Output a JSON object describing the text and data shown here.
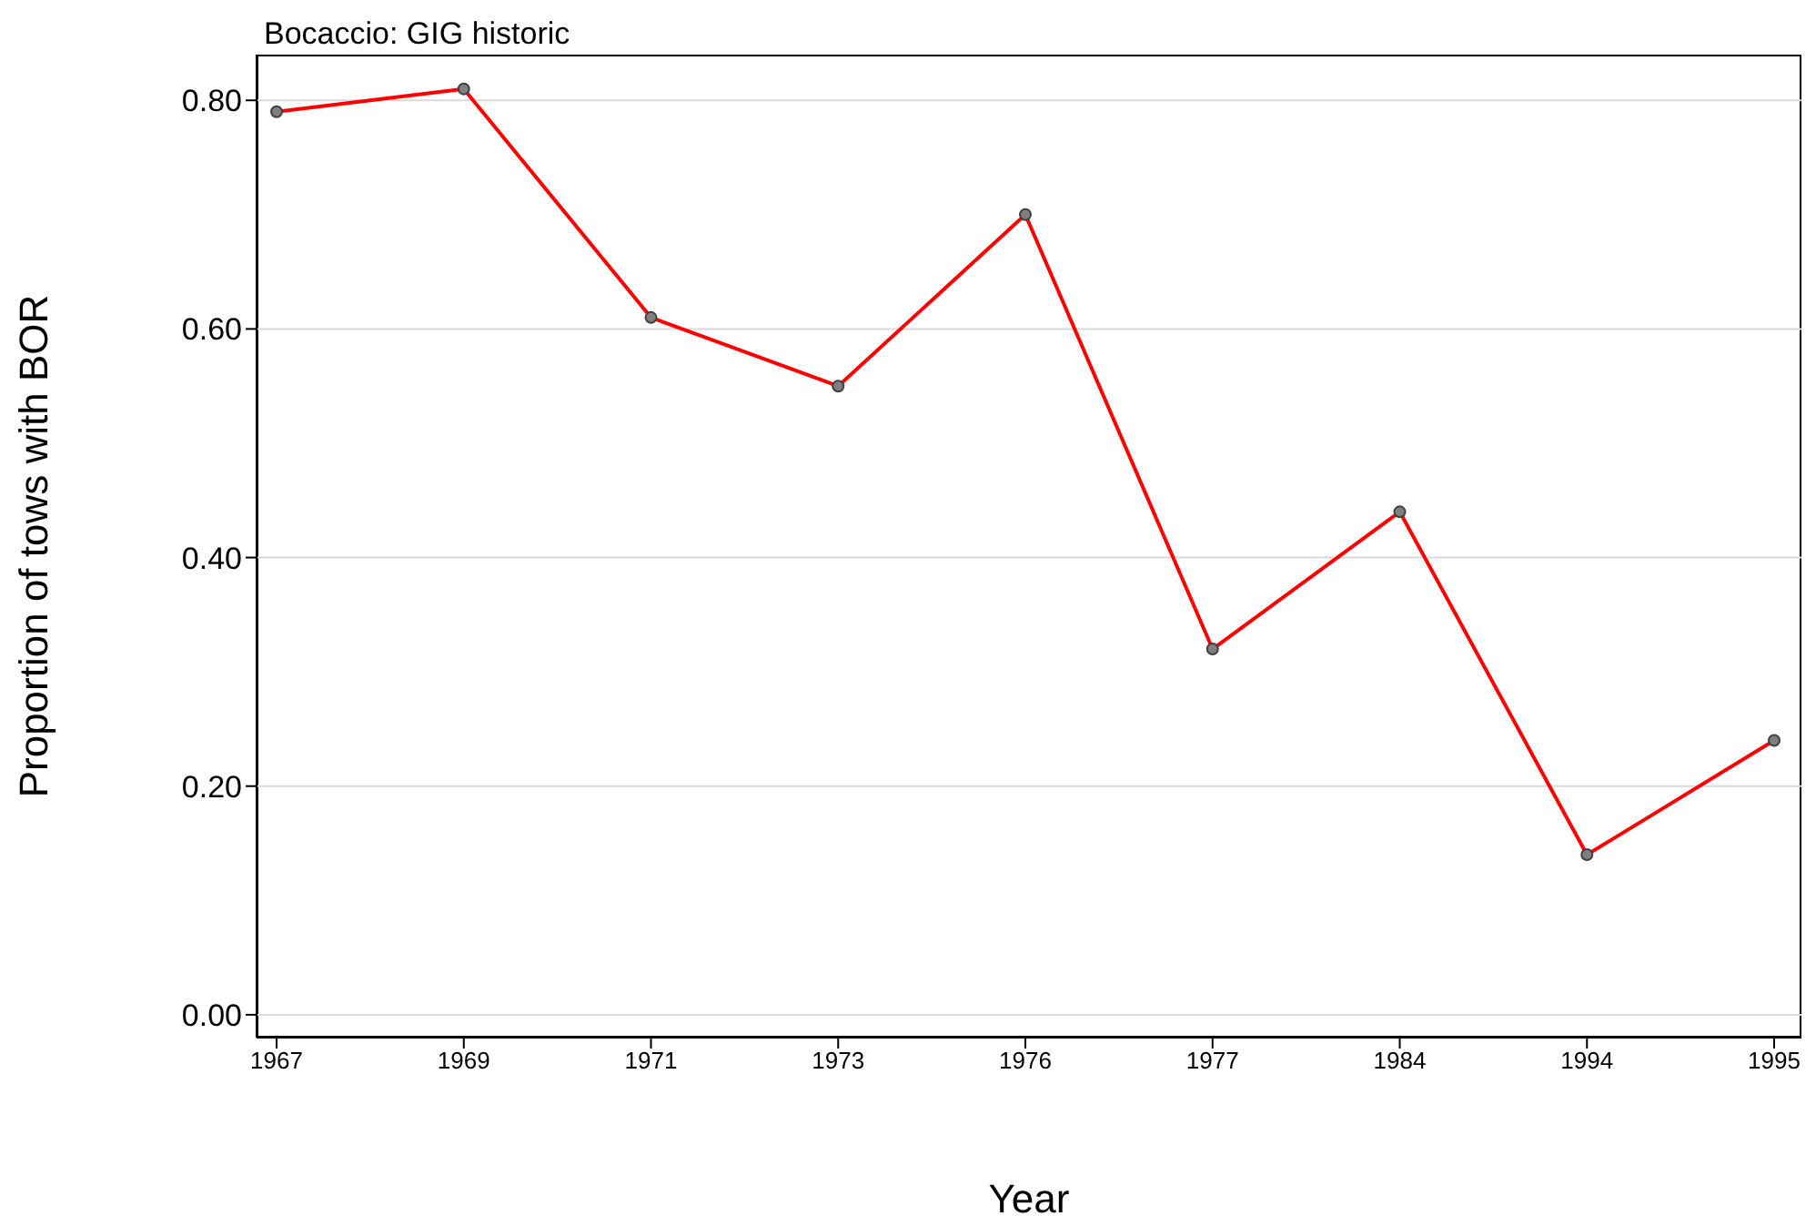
{
  "chart_data": {
    "type": "line",
    "title": "Bocaccio: GIG historic",
    "xlabel": "Year",
    "ylabel": "Proportion of tows with BOR",
    "categories": [
      "1967",
      "1969",
      "1971",
      "1973",
      "1976",
      "1977",
      "1984",
      "1994",
      "1995"
    ],
    "series": [
      {
        "color": "#ff0000",
        "values": [
          0.79,
          0.81,
          0.61,
          0.55,
          0.7,
          0.32,
          0.44,
          0.14,
          0.24
        ]
      }
    ],
    "ylim": [
      -0.02,
      0.84
    ],
    "yticks": [
      {
        "value": 0,
        "label": "0.00"
      },
      {
        "value": 0.2,
        "label": "0.20"
      },
      {
        "value": 0.4,
        "label": "0.40"
      },
      {
        "value": 0.6,
        "label": "0.60"
      },
      {
        "value": 0.8,
        "label": "0.80"
      }
    ],
    "grid": "y",
    "marker": "circle",
    "line_style": "solid"
  }
}
